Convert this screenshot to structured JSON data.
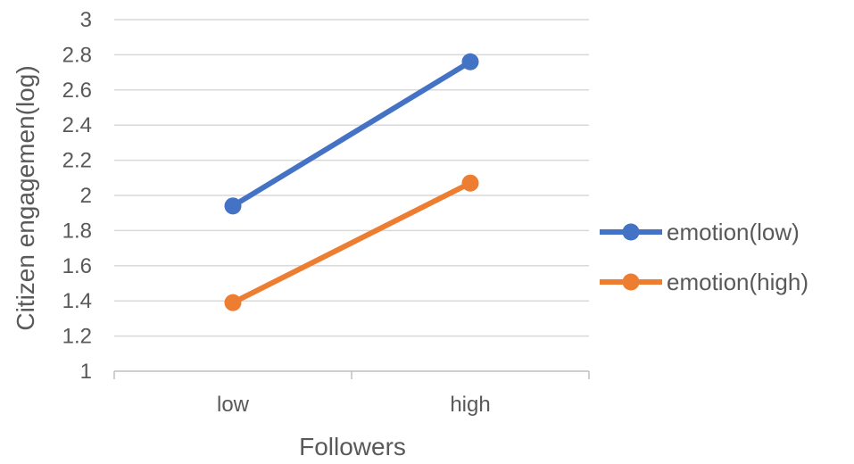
{
  "chart_data": {
    "type": "line",
    "categories": [
      "low",
      "high"
    ],
    "series": [
      {
        "name": "emotion(low)",
        "values": [
          1.94,
          2.76
        ],
        "color": "#4472c4"
      },
      {
        "name": "emotion(high)",
        "values": [
          1.39,
          2.07
        ],
        "color": "#ed7d31"
      }
    ],
    "xlabel": "Followers",
    "ylabel": "Citizen engagemen(log)",
    "ylim": [
      1,
      3
    ],
    "yticks": [
      "1",
      "1.2",
      "1.4",
      "1.6",
      "1.8",
      "2",
      "2.2",
      "2.4",
      "2.6",
      "2.8",
      "3"
    ],
    "grid": true,
    "legend_position": "right",
    "colors": {
      "gridline": "#d9d9d9",
      "axis": "#bfbfbf",
      "text": "#595959"
    }
  }
}
